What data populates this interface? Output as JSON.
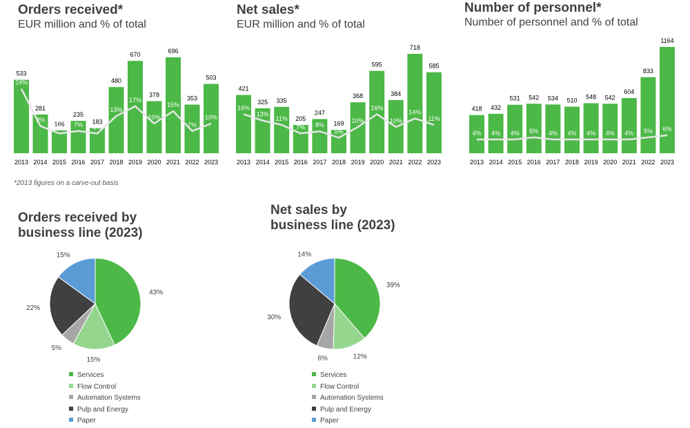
{
  "footnote": "*2013 figures on a carve-out basis",
  "colors": {
    "bar": "#4cb847",
    "line": "#e6e6e6",
    "services": "#4cb847",
    "flow_control": "#95d68f",
    "automation_systems": "#a6a6a6",
    "pulp_and_energy": "#404040",
    "paper": "#5b9bd5"
  },
  "chart_data": [
    {
      "id": "orders",
      "type": "bar",
      "title": "Orders received*",
      "subtitle": "EUR million and % of total",
      "categories": [
        "2013",
        "2014",
        "2015",
        "2016",
        "2017",
        "2018",
        "2019",
        "2020",
        "2021",
        "2022",
        "2023"
      ],
      "values": [
        533,
        281,
        166,
        235,
        183,
        480,
        670,
        378,
        696,
        353,
        503
      ],
      "percent_labels": [
        "24%",
        "9%",
        "6%",
        "7%",
        "6%",
        "13%",
        "17%",
        "10%",
        "15%",
        "7%",
        "10%"
      ],
      "percent_values": [
        24,
        9,
        6,
        7,
        6,
        13,
        17,
        10,
        15,
        7,
        10
      ],
      "ylim": [
        0,
        696
      ],
      "pct_ylim": [
        0,
        30
      ],
      "series": [
        {
          "name": "EUR million",
          "type": "bar",
          "values": [
            533,
            281,
            166,
            235,
            183,
            480,
            670,
            378,
            696,
            353,
            503
          ]
        },
        {
          "name": "% of total",
          "type": "line",
          "values": [
            24,
            9,
            6,
            7,
            6,
            13,
            17,
            10,
            15,
            7,
            10
          ]
        }
      ]
    },
    {
      "id": "sales",
      "type": "bar",
      "title": "Net sales*",
      "subtitle": "EUR million and % of total",
      "categories": [
        "2013",
        "2014",
        "2015",
        "2016",
        "2017",
        "2018",
        "2019",
        "2020",
        "2021",
        "2022",
        "2023"
      ],
      "values": [
        421,
        325,
        335,
        205,
        247,
        169,
        368,
        595,
        384,
        718,
        585
      ],
      "percent_labels": [
        "16%",
        "13%",
        "11%",
        "7%",
        "8%",
        "5%",
        "10%",
        "16%",
        "10%",
        "14%",
        "11%"
      ],
      "percent_values": [
        16,
        13,
        11,
        7,
        8,
        5,
        10,
        16,
        10,
        14,
        11
      ],
      "ylim": [
        0,
        718
      ],
      "pct_ylim": [
        0,
        22
      ],
      "series": [
        {
          "name": "EUR million",
          "type": "bar",
          "values": [
            421,
            325,
            335,
            205,
            247,
            169,
            368,
            595,
            384,
            718,
            585
          ]
        },
        {
          "name": "% of total",
          "type": "line",
          "values": [
            16,
            13,
            11,
            7,
            8,
            5,
            10,
            16,
            10,
            14,
            11
          ]
        }
      ]
    },
    {
      "id": "personnel",
      "type": "bar",
      "title": "Number of personnel*",
      "subtitle": "Number of personnel and % of total",
      "categories": [
        "2013",
        "2014",
        "2015",
        "2016",
        "2017",
        "2018",
        "2019",
        "2020",
        "2021",
        "2022",
        "2023"
      ],
      "values": [
        418,
        432,
        531,
        542,
        534,
        510,
        548,
        542,
        604,
        833,
        1164
      ],
      "percent_labels": [
        "4%",
        "4%",
        "4%",
        "5%",
        "4%",
        "4%",
        "4%",
        "4%",
        "4%",
        "5%",
        "6%"
      ],
      "percent_values": [
        4,
        4,
        4,
        5,
        4,
        4,
        4,
        4,
        4,
        5,
        6
      ],
      "ylim": [
        0,
        1164
      ],
      "pct_ylim": [
        0,
        35
      ],
      "series": [
        {
          "name": "Number of personnel",
          "type": "bar",
          "values": [
            418,
            432,
            531,
            542,
            534,
            510,
            548,
            542,
            604,
            833,
            1164
          ]
        },
        {
          "name": "% of total",
          "type": "line",
          "values": [
            4,
            4,
            4,
            5,
            4,
            4,
            4,
            4,
            4,
            5,
            6
          ]
        }
      ]
    },
    {
      "id": "orders_pie",
      "type": "pie",
      "title": "Orders received by business line (2023)",
      "title_lines": [
        "Orders received by",
        "business line (2023)"
      ],
      "labels": [
        "Services",
        "Flow Control",
        "Automation Systems",
        "Pulp and Energy",
        "Paper"
      ],
      "values": [
        43,
        15,
        5,
        22,
        15
      ],
      "value_labels": [
        "43%",
        "15%",
        "5%",
        "22%",
        "15%"
      ]
    },
    {
      "id": "sales_pie",
      "type": "pie",
      "title": "Net sales by business line (2023)",
      "title_lines": [
        "Net sales by",
        "business line (2023)"
      ],
      "labels": [
        "Services",
        "Flow Control",
        "Automation Systems",
        "Pulp and Energy",
        "Paper"
      ],
      "values": [
        39,
        12,
        6,
        30,
        14
      ],
      "value_labels": [
        "39%",
        "12%",
        "6%",
        "30%",
        "14%"
      ]
    }
  ]
}
